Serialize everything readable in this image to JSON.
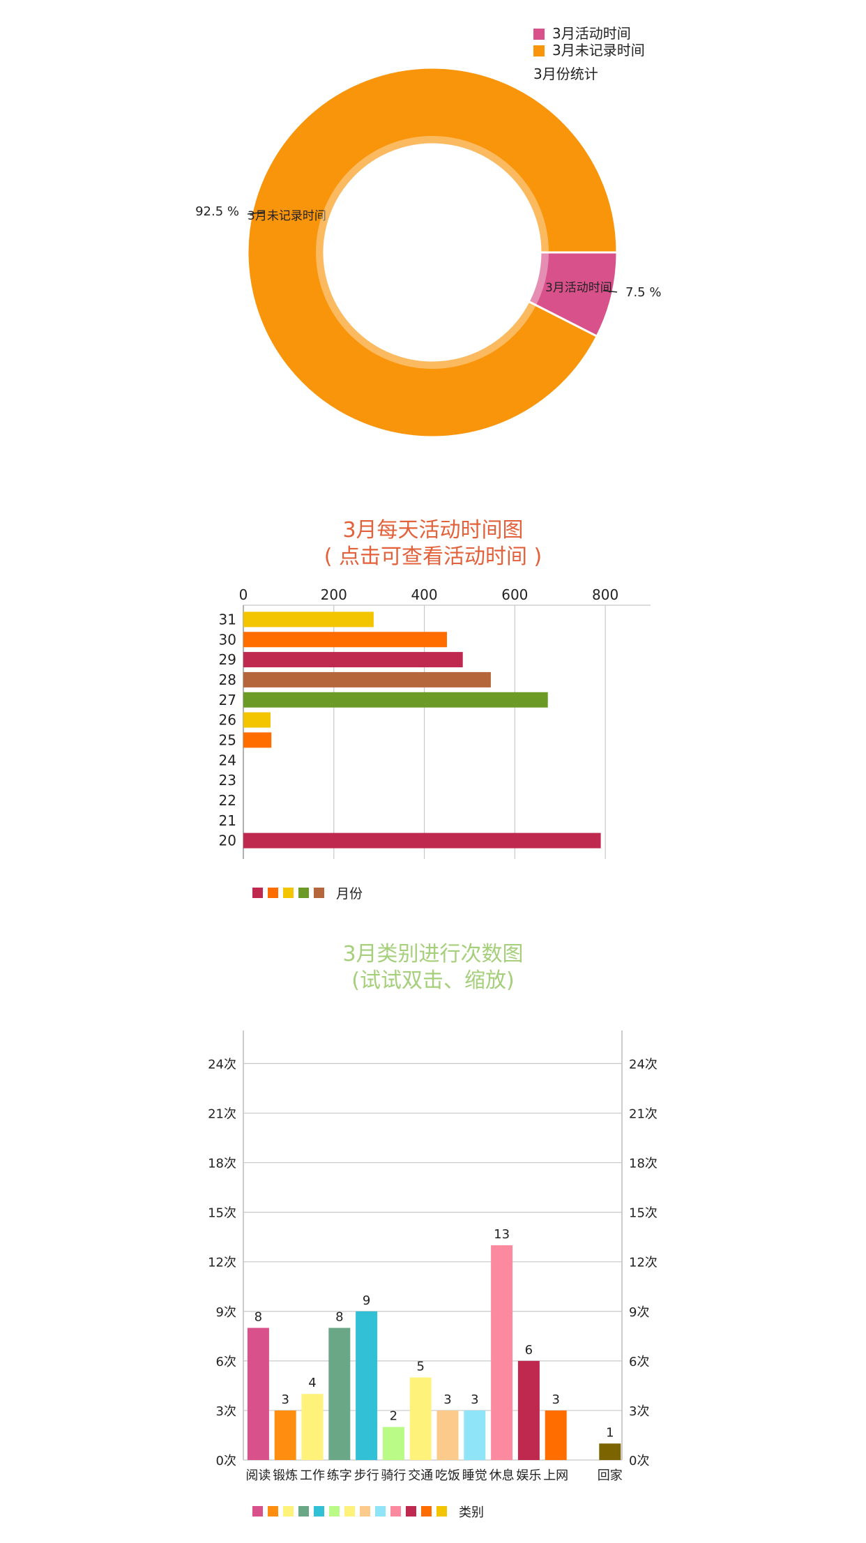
{
  "chart_data": [
    {
      "type": "pie",
      "title": "3月份统计",
      "legend": [
        "3月活动时间",
        "3月未记录时间"
      ],
      "legend_placement": "top-right",
      "slices": [
        {
          "name": "3月活动时间",
          "value": 7.5,
          "label": "7.5 %",
          "color": "#d9518b"
        },
        {
          "name": "3月未记录时间",
          "value": 92.5,
          "label": "92.5 %",
          "color": "#f9950a"
        }
      ]
    },
    {
      "type": "bar",
      "orientation": "horizontal",
      "title": "3月每天活动时间图",
      "subtitle": "( 点击可查看活动时间 )",
      "title_color": "#e2603a",
      "categories": [
        "31",
        "30",
        "29",
        "28",
        "27",
        "26",
        "25",
        "24",
        "23",
        "22",
        "21",
        "20"
      ],
      "values": [
        288,
        450,
        485,
        547,
        673,
        60,
        62,
        0,
        0,
        0,
        0,
        790
      ],
      "bar_colors": [
        "#f2c500",
        "#ff6d00",
        "#c0294f",
        "#b5673b",
        "#6c9a26",
        "#f2c500",
        "#ff6d00",
        "#c0294f",
        "#b5673b",
        "#6c9a26",
        "#f2c500",
        "#c0294f"
      ],
      "xlim": [
        0,
        900
      ],
      "xticks": [
        0,
        200,
        400,
        600,
        800
      ],
      "grid": true,
      "legend_label": "月份",
      "legend_colors": [
        "#c0294f",
        "#ff6d00",
        "#f2c500",
        "#6c9a26",
        "#b5673b"
      ],
      "legend_placement": "bottom-left"
    },
    {
      "type": "bar",
      "title": "3月类别进行次数图",
      "subtitle": "(试试双击、缩放)",
      "title_color": "#a5cf7a",
      "categories": [
        "阅读",
        "锻炼",
        "工作",
        "练字",
        "步行",
        "骑行",
        "交通",
        "吃饭",
        "睡觉",
        "休息",
        "娱乐",
        "上网",
        "回家"
      ],
      "values": [
        8,
        3,
        4,
        8,
        9,
        2,
        5,
        3,
        3,
        13,
        6,
        3,
        1
      ],
      "bar_colors": [
        "#d9518b",
        "#ff8e10",
        "#fef27a",
        "#6aa787",
        "#31c0d6",
        "#b9fb86",
        "#fef27a",
        "#fccb8c",
        "#8fe4f8",
        "#fb8aa1",
        "#c0294f",
        "#ff6d00",
        "#7c6500"
      ],
      "ylim": [
        0,
        26
      ],
      "yticks": [
        "0次",
        "3次",
        "6次",
        "9次",
        "12次",
        "15次",
        "18次",
        "21次",
        "24次"
      ],
      "grid": true,
      "legend_label": "类别",
      "legend_colors": [
        "#d9518b",
        "#ff8e10",
        "#fef27a",
        "#6aa787",
        "#31c0d6",
        "#b9fb86",
        "#fef27a",
        "#fccb8c",
        "#8fe4f8",
        "#fb8aa1",
        "#c0294f",
        "#ff6d00",
        "#f2c500"
      ],
      "legend_placement": "bottom-left"
    }
  ]
}
